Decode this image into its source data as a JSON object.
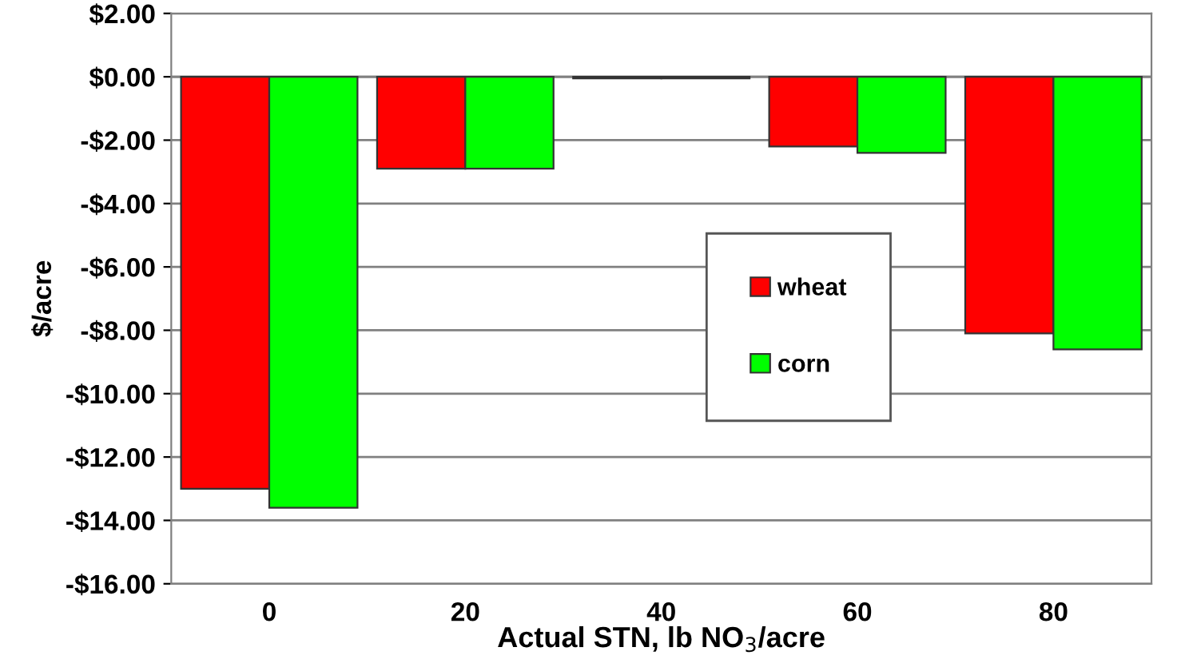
{
  "chart_data": {
    "type": "bar",
    "xlabel": "Actual STN, lb NO$_{3}$/acre",
    "ylabel": "$/acre",
    "categories": [
      "0",
      "20",
      "40",
      "60",
      "80"
    ],
    "series": [
      {
        "name": "wheat",
        "color": "#ff0000",
        "values": [
          -13.0,
          -2.9,
          -0.05,
          -2.2,
          -8.1
        ]
      },
      {
        "name": "corn",
        "color": "#00ff00",
        "values": [
          -13.6,
          -2.9,
          -0.05,
          -2.4,
          -8.6
        ]
      }
    ],
    "ylim": [
      -16,
      2
    ],
    "yticks": [
      {
        "value": 2,
        "label": "$2.00"
      },
      {
        "value": 0,
        "label": "$0.00"
      },
      {
        "value": -2,
        "label": "-$2.00"
      },
      {
        "value": -4,
        "label": "-$4.00"
      },
      {
        "value": -6,
        "label": "-$6.00"
      },
      {
        "value": -8,
        "label": "-$8.00"
      },
      {
        "value": -10,
        "label": "-$10.00"
      },
      {
        "value": -12,
        "label": "-$12.00"
      },
      {
        "value": -14,
        "label": "-$14.00"
      },
      {
        "value": -16,
        "label": "-$16.00"
      }
    ],
    "grid": "y",
    "legend": "right"
  }
}
